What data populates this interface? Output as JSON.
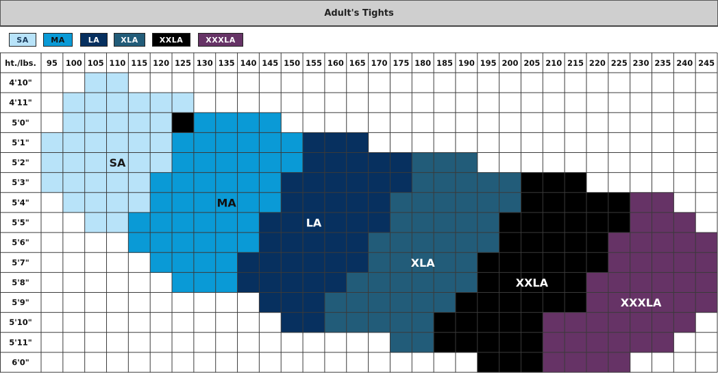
{
  "title": "Adult's Tights",
  "colors": {
    "SA": "#b8e3f9",
    "MA": "#0a9ad6",
    "LA": "#07305f",
    "XLA": "#225c79",
    "XXLA": "#000000",
    "XXXLA": "#663366"
  },
  "legend": [
    "SA",
    "MA",
    "LA",
    "XLA",
    "XXLA",
    "XXXLA"
  ],
  "chart_data": {
    "type": "heatmap",
    "title": "Adult's Tights",
    "corner_label": "ht./lbs.",
    "weights": [
      "95",
      "100",
      "105",
      "110",
      "115",
      "120",
      "125",
      "130",
      "135",
      "140",
      "145",
      "150",
      "155",
      "160",
      "165",
      "170",
      "175",
      "180",
      "185",
      "190",
      "195",
      "200",
      "205",
      "210",
      "215",
      "220",
      "225",
      "230",
      "235",
      "240",
      "245"
    ],
    "heights": [
      "4'10\"",
      "4'11\"",
      "5'0\"",
      "5'1\"",
      "5'2\"",
      "5'3\"",
      "5'4\"",
      "5'5\"",
      "5'6\"",
      "5'7\"",
      "5'8\"",
      "5'9\"",
      "5'10\"",
      "5'11\"",
      "6'0\""
    ],
    "rows": [
      [
        null,
        null,
        "SA",
        "SA",
        null,
        null,
        null,
        null,
        null,
        null,
        null,
        null,
        null,
        null,
        null,
        null,
        null,
        null,
        null,
        null,
        null,
        null,
        null,
        null,
        null,
        null,
        null,
        null,
        null,
        null,
        null
      ],
      [
        null,
        "SA",
        "SA",
        "SA",
        "SA",
        "SA",
        "SA",
        null,
        null,
        null,
        null,
        null,
        null,
        null,
        null,
        null,
        null,
        null,
        null,
        null,
        null,
        null,
        null,
        null,
        null,
        null,
        null,
        null,
        null,
        null,
        null
      ],
      [
        null,
        "SA",
        "SA",
        "SA",
        "SA",
        "SA",
        "XXLA",
        "MA",
        "MA",
        "MA",
        "MA",
        null,
        null,
        null,
        null,
        null,
        null,
        null,
        null,
        null,
        null,
        null,
        null,
        null,
        null,
        null,
        null,
        null,
        null,
        null,
        null
      ],
      [
        "SA",
        "SA",
        "SA",
        "SA",
        "SA",
        "SA",
        "MA",
        "MA",
        "MA",
        "MA",
        "MA",
        "MA",
        "LA",
        "LA",
        "LA",
        null,
        null,
        null,
        null,
        null,
        null,
        null,
        null,
        null,
        null,
        null,
        null,
        null,
        null,
        null,
        null
      ],
      [
        "SA",
        "SA",
        "SA",
        "SA",
        "SA",
        "SA",
        "MA",
        "MA",
        "MA",
        "MA",
        "MA",
        "MA",
        "LA",
        "LA",
        "LA",
        "LA",
        "LA",
        "XLA",
        "XLA",
        "XLA",
        null,
        null,
        null,
        null,
        null,
        null,
        null,
        null,
        null,
        null,
        null
      ],
      [
        "SA",
        "SA",
        "SA",
        "SA",
        "SA",
        "MA",
        "MA",
        "MA",
        "MA",
        "MA",
        "MA",
        "LA",
        "LA",
        "LA",
        "LA",
        "LA",
        "LA",
        "XLA",
        "XLA",
        "XLA",
        "XLA",
        "XLA",
        "XXLA",
        "XXLA",
        "XXLA",
        null,
        null,
        null,
        null,
        null,
        null
      ],
      [
        null,
        "SA",
        "SA",
        "SA",
        "SA",
        "MA",
        "MA",
        "MA",
        "MA",
        "MA",
        "MA",
        "LA",
        "LA",
        "LA",
        "LA",
        "LA",
        "XLA",
        "XLA",
        "XLA",
        "XLA",
        "XLA",
        "XLA",
        "XXLA",
        "XXLA",
        "XXLA",
        "XXLA",
        "XXLA",
        "XXXLA",
        "XXXLA",
        null,
        null
      ],
      [
        null,
        null,
        "SA",
        "SA",
        "MA",
        "MA",
        "MA",
        "MA",
        "MA",
        "MA",
        "LA",
        "LA",
        "LA",
        "LA",
        "LA",
        "LA",
        "XLA",
        "XLA",
        "XLA",
        "XLA",
        "XLA",
        "XXLA",
        "XXLA",
        "XXLA",
        "XXLA",
        "XXLA",
        "XXLA",
        "XXXLA",
        "XXXLA",
        "XXXLA",
        null
      ],
      [
        null,
        null,
        null,
        null,
        "MA",
        "MA",
        "MA",
        "MA",
        "MA",
        "MA",
        "LA",
        "LA",
        "LA",
        "LA",
        "LA",
        "XLA",
        "XLA",
        "XLA",
        "XLA",
        "XLA",
        "XLA",
        "XXLA",
        "XXLA",
        "XXLA",
        "XXLA",
        "XXLA",
        "XXXLA",
        "XXXLA",
        "XXXLA",
        "XXXLA",
        "XXXLA"
      ],
      [
        null,
        null,
        null,
        null,
        null,
        "MA",
        "MA",
        "MA",
        "MA",
        "LA",
        "LA",
        "LA",
        "LA",
        "LA",
        "LA",
        "XLA",
        "XLA",
        "XLA",
        "XLA",
        "XLA",
        "XXLA",
        "XXLA",
        "XXLA",
        "XXLA",
        "XXLA",
        "XXLA",
        "XXXLA",
        "XXXLA",
        "XXXLA",
        "XXXLA",
        "XXXLA"
      ],
      [
        null,
        null,
        null,
        null,
        null,
        null,
        "MA",
        "MA",
        "MA",
        "LA",
        "LA",
        "LA",
        "LA",
        "LA",
        "XLA",
        "XLA",
        "XLA",
        "XLA",
        "XLA",
        "XLA",
        "XXLA",
        "XXLA",
        "XXLA",
        "XXLA",
        "XXLA",
        "XXXLA",
        "XXXLA",
        "XXXLA",
        "XXXLA",
        "XXXLA",
        "XXXLA"
      ],
      [
        null,
        null,
        null,
        null,
        null,
        null,
        null,
        null,
        null,
        null,
        "LA",
        "LA",
        "LA",
        "XLA",
        "XLA",
        "XLA",
        "XLA",
        "XLA",
        "XLA",
        "XXLA",
        "XXLA",
        "XXLA",
        "XXLA",
        "XXLA",
        "XXLA",
        "XXXLA",
        "XXXLA",
        "XXXLA",
        "XXXLA",
        "XXXLA",
        "XXXLA"
      ],
      [
        null,
        null,
        null,
        null,
        null,
        null,
        null,
        null,
        null,
        null,
        null,
        "LA",
        "LA",
        "XLA",
        "XLA",
        "XLA",
        "XLA",
        "XLA",
        "XXLA",
        "XXLA",
        "XXLA",
        "XXLA",
        "XXLA",
        "XXXLA",
        "XXXLA",
        "XXXLA",
        "XXXLA",
        "XXXLA",
        "XXXLA",
        "XXXLA",
        null
      ],
      [
        null,
        null,
        null,
        null,
        null,
        null,
        null,
        null,
        null,
        null,
        null,
        null,
        null,
        null,
        null,
        null,
        "XLA",
        "XLA",
        "XXLA",
        "XXLA",
        "XXLA",
        "XXLA",
        "XXLA",
        "XXXLA",
        "XXXLA",
        "XXXLA",
        "XXXLA",
        "XXXLA",
        "XXXLA",
        null,
        null
      ],
      [
        null,
        null,
        null,
        null,
        null,
        null,
        null,
        null,
        null,
        null,
        null,
        null,
        null,
        null,
        null,
        null,
        null,
        null,
        null,
        null,
        "XXLA",
        "XXLA",
        "XXLA",
        "XXXLA",
        "XXXLA",
        "XXXLA",
        "XXXLA",
        null,
        null,
        null,
        null
      ]
    ],
    "region_labels": [
      {
        "text": "SA",
        "height": "5'2\"",
        "weight": "110"
      },
      {
        "text": "MA",
        "height": "5'4\"",
        "weight": "135"
      },
      {
        "text": "LA",
        "height": "5'5\"",
        "weight": "155"
      },
      {
        "text": "XLA",
        "height": "5'7\"",
        "weight": "180"
      },
      {
        "text": "XXLA",
        "height": "5'8\"",
        "weight": "205"
      },
      {
        "text": "XXXLA",
        "height": "5'9\"",
        "weight": "230"
      }
    ]
  }
}
